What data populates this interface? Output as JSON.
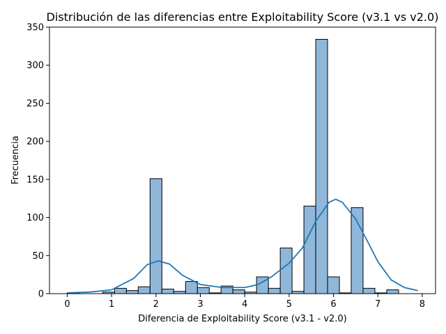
{
  "chart_data": {
    "type": "histogram",
    "title": "Distribución de las diferencias entre Exploitability Score (v3.1 vs v2.0)",
    "xlabel": "Diferencia de Exploitability Score (v3.1 - v2.0)",
    "ylabel": "Frecuencia",
    "xlim": [
      -0.4,
      8.3
    ],
    "ylim": [
      0,
      350
    ],
    "xticks": [
      "0",
      "1",
      "2",
      "3",
      "4",
      "5",
      "6",
      "7",
      "8"
    ],
    "yticks": [
      "0",
      "50",
      "100",
      "150",
      "200",
      "250",
      "300",
      "350"
    ],
    "bin_width": 0.2667,
    "bins": [
      {
        "x0": 0.0,
        "value": 1
      },
      {
        "x0": 0.2667,
        "value": 0
      },
      {
        "x0": 0.5333,
        "value": 0
      },
      {
        "x0": 0.8,
        "value": 2
      },
      {
        "x0": 1.0667,
        "value": 7
      },
      {
        "x0": 1.3333,
        "value": 4
      },
      {
        "x0": 1.6,
        "value": 9
      },
      {
        "x0": 1.8667,
        "value": 151
      },
      {
        "x0": 2.1333,
        "value": 6
      },
      {
        "x0": 2.4,
        "value": 3
      },
      {
        "x0": 2.6667,
        "value": 16
      },
      {
        "x0": 2.9333,
        "value": 8
      },
      {
        "x0": 3.2,
        "value": 1
      },
      {
        "x0": 3.4667,
        "value": 10
      },
      {
        "x0": 3.7333,
        "value": 5
      },
      {
        "x0": 4.0,
        "value": 2
      },
      {
        "x0": 4.2667,
        "value": 22
      },
      {
        "x0": 4.5333,
        "value": 7
      },
      {
        "x0": 4.8,
        "value": 60
      },
      {
        "x0": 5.0667,
        "value": 3
      },
      {
        "x0": 5.3333,
        "value": 115
      },
      {
        "x0": 5.6,
        "value": 334
      },
      {
        "x0": 5.8667,
        "value": 22
      },
      {
        "x0": 6.1333,
        "value": 1
      },
      {
        "x0": 6.4,
        "value": 113
      },
      {
        "x0": 6.6667,
        "value": 7
      },
      {
        "x0": 6.9333,
        "value": 1
      },
      {
        "x0": 7.2,
        "value": 5
      }
    ],
    "kde": [
      [
        0.0,
        1
      ],
      [
        0.5,
        2
      ],
      [
        1.0,
        5
      ],
      [
        1.5,
        20
      ],
      [
        1.8,
        38
      ],
      [
        2.05,
        43
      ],
      [
        2.3,
        39
      ],
      [
        2.6,
        24
      ],
      [
        3.0,
        12
      ],
      [
        3.5,
        8
      ],
      [
        4.0,
        8
      ],
      [
        4.3,
        12
      ],
      [
        4.6,
        22
      ],
      [
        5.0,
        40
      ],
      [
        5.3,
        60
      ],
      [
        5.6,
        95
      ],
      [
        5.9,
        120
      ],
      [
        6.05,
        124
      ],
      [
        6.2,
        120
      ],
      [
        6.5,
        98
      ],
      [
        6.8,
        65
      ],
      [
        7.0,
        42
      ],
      [
        7.3,
        18
      ],
      [
        7.6,
        8
      ],
      [
        7.9,
        4
      ]
    ],
    "colors": {
      "bar_fill": "#8fb7da",
      "bar_edge": "#000000",
      "kde_line": "#1f77b4"
    }
  }
}
